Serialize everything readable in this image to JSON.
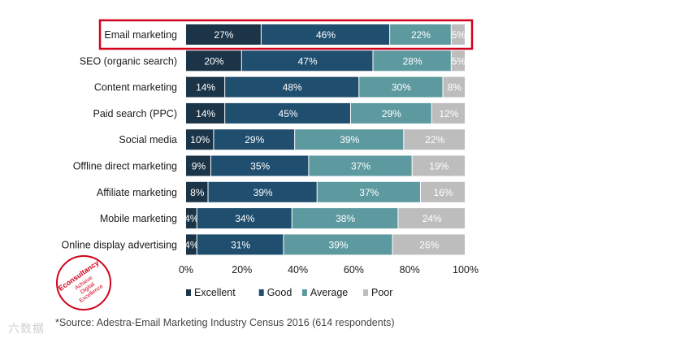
{
  "chart_data": {
    "type": "bar",
    "orientation": "horizontal",
    "stacked": true,
    "categories": [
      "Email marketing",
      "SEO (organic search)",
      "Content marketing",
      "Paid search (PPC)",
      "Social media",
      "Offline direct marketing",
      "Affiliate marketing",
      "Mobile marketing",
      "Online display advertising"
    ],
    "series": [
      {
        "name": "Excellent",
        "color": "#1b3448",
        "values": [
          27,
          20,
          14,
          14,
          10,
          9,
          8,
          4,
          4
        ]
      },
      {
        "name": "Good",
        "color": "#1f4e6e",
        "values": [
          46,
          47,
          48,
          45,
          29,
          35,
          39,
          34,
          31
        ]
      },
      {
        "name": "Average",
        "color": "#5d9aa0",
        "values": [
          22,
          28,
          30,
          29,
          39,
          37,
          37,
          38,
          39
        ]
      },
      {
        "name": "Poor",
        "color": "#bdbdbd",
        "values": [
          5,
          5,
          8,
          12,
          22,
          19,
          16,
          24,
          26
        ]
      }
    ],
    "segment_labels": [
      [
        "27%",
        "46%",
        "22%",
        "5%"
      ],
      [
        "20%",
        "47%",
        "28%",
        "5%"
      ],
      [
        "14%",
        "48%",
        "30%",
        "8%"
      ],
      [
        "14%",
        "45%",
        "29%",
        "12%"
      ],
      [
        "10%",
        "29%",
        "39%",
        "22%"
      ],
      [
        "9%",
        "35%",
        "37%",
        "19%"
      ],
      [
        "8%",
        "39%",
        "37%",
        "16%"
      ],
      [
        "4%",
        "34%",
        "38%",
        "24%"
      ],
      [
        "4%",
        "31%",
        "39%",
        "26%"
      ]
    ],
    "x_ticks": [
      "0%",
      "20%",
      "40%",
      "60%",
      "80%",
      "100%"
    ],
    "xlim": [
      0,
      100
    ],
    "highlighted_category": "Email marketing",
    "highlight_color": "#d0021b",
    "legend_position": "bottom"
  },
  "source": "*Source: Adestra-Email Marketing Industry Census 2016 (614 respondents)",
  "logo": {
    "brand": "Econsultancy",
    "tagline_1": "Achieve",
    "tagline_2": "Digital",
    "tagline_3": "Excellence",
    "color": "#d0021b"
  },
  "watermark": "六数据"
}
